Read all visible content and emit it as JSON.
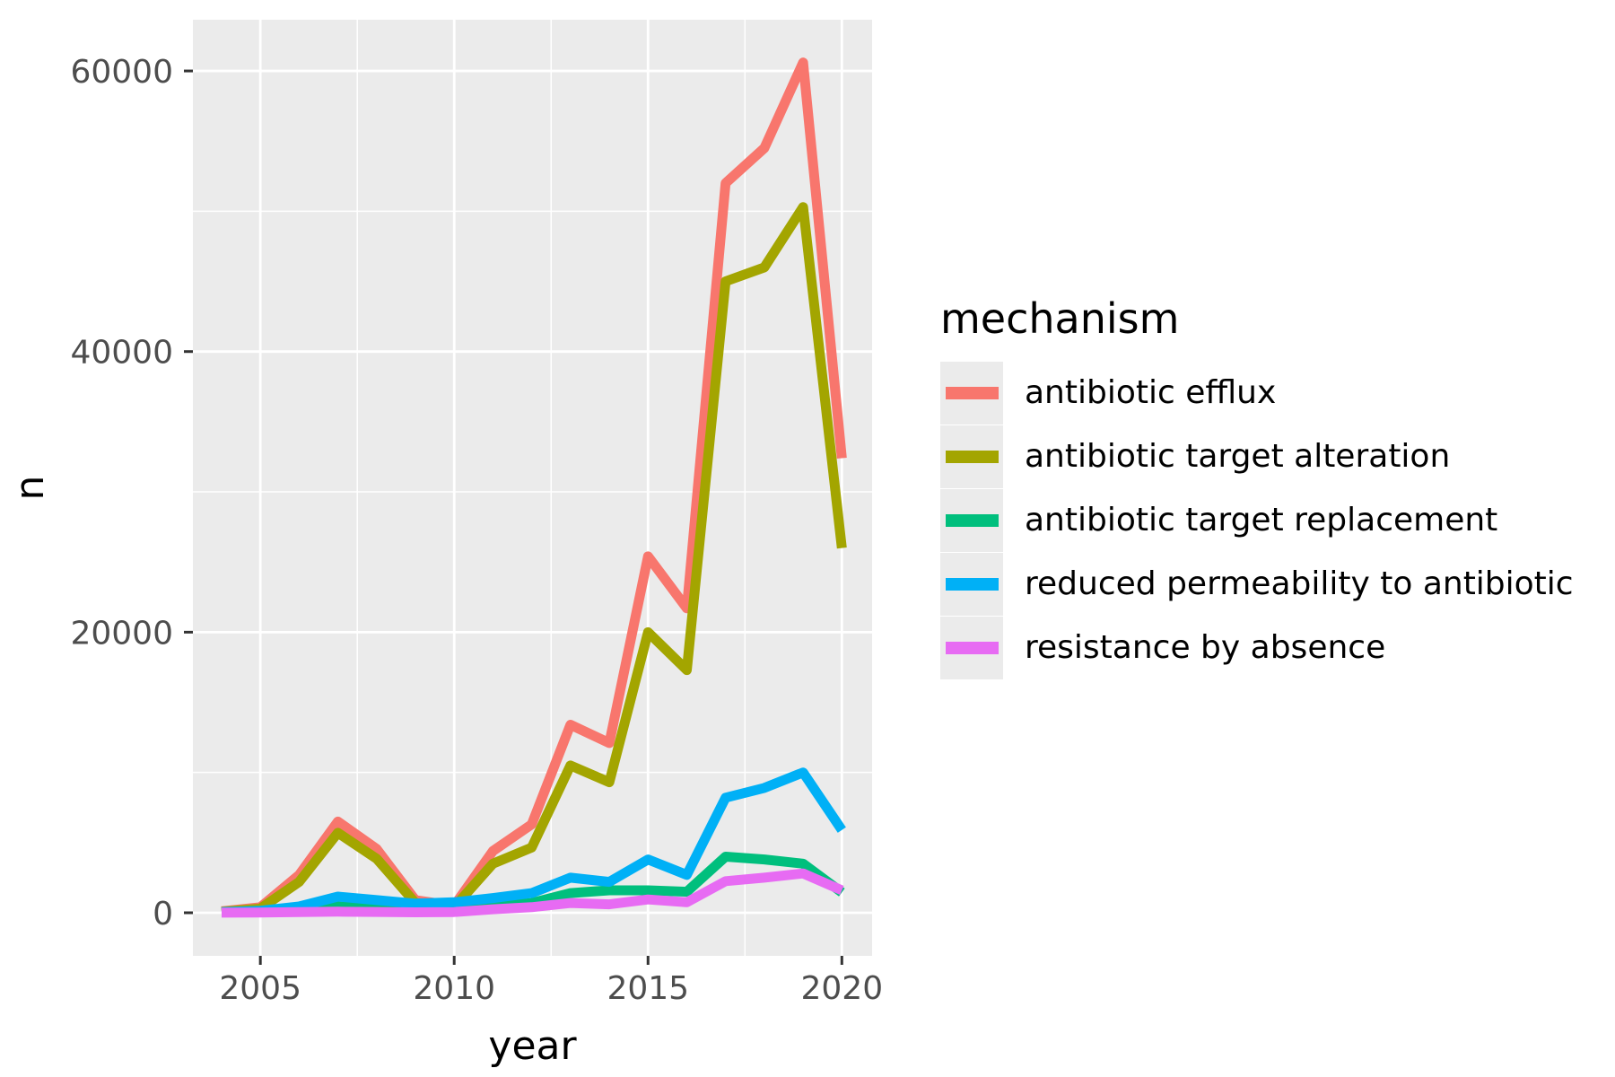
{
  "chart_data": {
    "type": "line",
    "title": "",
    "xlabel": "year",
    "ylabel": "n",
    "legend_title": "mechanism",
    "legend_position": "right",
    "grid": true,
    "panel_background": "#EBEBEB",
    "grid_color": "#FFFFFF",
    "tick_label_color": "#4D4D4D",
    "x": [
      2004,
      2005,
      2006,
      2007,
      2008,
      2009,
      2010,
      2011,
      2012,
      2013,
      2014,
      2015,
      2016,
      2017,
      2018,
      2019,
      2020
    ],
    "xlim": [
      2003.26,
      2020.78
    ],
    "ylim": [
      -3070,
      63650
    ],
    "x_major_ticks": [
      2005,
      2010,
      2015,
      2020
    ],
    "x_minor_ticks": [
      2007.5,
      2012.5,
      2017.5
    ],
    "x_tick_labels": [
      "2005",
      "2010",
      "2015",
      "2020"
    ],
    "y_major_ticks": [
      0,
      20000,
      40000,
      60000
    ],
    "y_minor_ticks": [
      10000,
      30000,
      50000
    ],
    "y_tick_labels": [
      "0",
      "20000",
      "40000",
      "60000"
    ],
    "series": [
      {
        "name": "antibiotic efflux",
        "color": "#F8766D",
        "values": [
          100,
          400,
          2700,
          6500,
          4550,
          900,
          500,
          4400,
          6300,
          13400,
          12100,
          25400,
          21700,
          52000,
          54500,
          60600,
          32400
        ]
      },
      {
        "name": "antibiotic target alteration",
        "color": "#A3A500",
        "values": [
          80,
          300,
          2200,
          5700,
          3850,
          700,
          400,
          3500,
          4650,
          10500,
          9300,
          20000,
          17300,
          45000,
          46000,
          50300,
          26000
        ]
      },
      {
        "name": "antibiotic target replacement",
        "color": "#00BF7D",
        "values": [
          30,
          60,
          250,
          450,
          350,
          250,
          300,
          450,
          700,
          1400,
          1600,
          1600,
          1500,
          4000,
          3800,
          3500,
          1450
        ]
      },
      {
        "name": "reduced permeability to antibiotic",
        "color": "#00B0F6",
        "values": [
          50,
          150,
          450,
          1150,
          900,
          650,
          750,
          1050,
          1400,
          2500,
          2200,
          3800,
          2700,
          8200,
          8900,
          10000,
          5900
        ]
      },
      {
        "name": "resistance by absence",
        "color": "#E76BF3",
        "values": [
          10,
          20,
          50,
          80,
          60,
          30,
          50,
          250,
          400,
          700,
          600,
          950,
          750,
          2250,
          2500,
          2800,
          1600
        ]
      }
    ]
  },
  "axes": {
    "xlabel": "year",
    "ylabel": "n"
  },
  "legend": {
    "title": "mechanism",
    "items": [
      {
        "label": "antibiotic efflux",
        "color": "#F8766D"
      },
      {
        "label": "antibiotic target alteration",
        "color": "#A3A500"
      },
      {
        "label": "antibiotic target replacement",
        "color": "#00BF7D"
      },
      {
        "label": "reduced permeability to antibiotic",
        "color": "#00B0F6"
      },
      {
        "label": "resistance by absence",
        "color": "#E76BF3"
      }
    ]
  }
}
